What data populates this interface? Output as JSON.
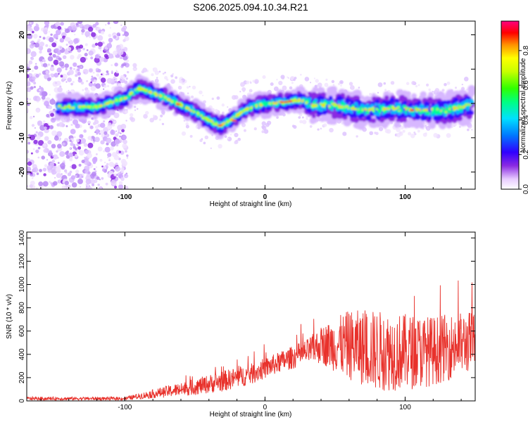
{
  "title": "S206.2025.094.10.34.R21",
  "chart_data": [
    {
      "type": "heatmap",
      "xlabel": "Height of straight line (km)",
      "ylabel": "Frequency (Hz)",
      "xlim": [
        -170,
        150
      ],
      "ylim": [
        -25,
        24
      ],
      "x_ticks": [
        -100,
        0,
        100
      ],
      "y_ticks": [
        -20,
        -10,
        0,
        10,
        20
      ],
      "colorbar": {
        "label": "Normalized spectral amplitude",
        "range": [
          0,
          0.97
        ],
        "ticks": [
          "0.0",
          "0.2",
          "0.4",
          "0.6",
          "0.8"
        ],
        "tick_values": [
          0,
          0.2,
          0.4,
          0.6,
          0.8
        ]
      },
      "ridge": {
        "x": [
          -145,
          -120,
          -100,
          -90,
          -80,
          -70,
          -60,
          -50,
          -40,
          -32,
          -25,
          -15,
          -5,
          5,
          15,
          25,
          35,
          50,
          70,
          90,
          110,
          130,
          145
        ],
        "y": [
          -1,
          -1,
          1.5,
          4.5,
          3,
          1.5,
          -0.5,
          -2.5,
          -5,
          -6.5,
          -5,
          -2,
          -0.5,
          0,
          0.5,
          1,
          -0.5,
          -0.5,
          -2,
          -1.5,
          -2,
          -2,
          -0.5
        ]
      }
    },
    {
      "type": "line",
      "xlabel": "Height of straight line (km)",
      "ylabel": "SNR (10 * v/v)",
      "xlim": [
        -170,
        150
      ],
      "ylim": [
        0,
        1450
      ],
      "x_ticks": [
        -100,
        0,
        100
      ],
      "y_ticks": [
        0,
        200,
        400,
        600,
        800,
        1000,
        1200,
        1400
      ],
      "color": "#e8312b",
      "envelope": {
        "x": [
          -170,
          -100,
          -90,
          -70,
          -50,
          -30,
          -10,
          10,
          30,
          40,
          60,
          80,
          100,
          120,
          150
        ],
        "base": [
          20,
          20,
          40,
          80,
          120,
          170,
          230,
          330,
          420,
          480,
          480,
          430,
          420,
          430,
          520
        ],
        "amp": [
          15,
          15,
          25,
          50,
          70,
          90,
          90,
          90,
          110,
          160,
          300,
          350,
          330,
          300,
          260
        ]
      }
    }
  ]
}
